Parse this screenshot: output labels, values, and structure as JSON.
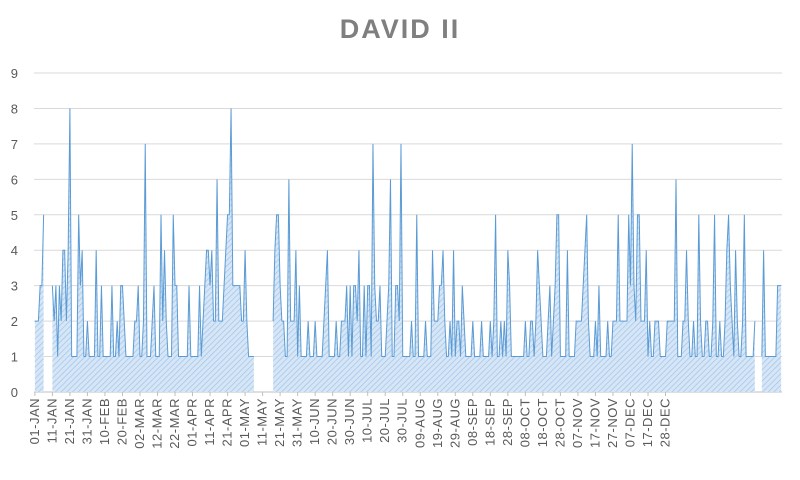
{
  "chart_data": {
    "type": "area",
    "title": "DAVID II",
    "xlabel": "",
    "ylabel": "",
    "ylim": [
      0,
      9
    ],
    "yticks": [
      0,
      1,
      2,
      3,
      4,
      5,
      6,
      7,
      8,
      9
    ],
    "grid": true,
    "x_start": "01-JAN",
    "x_tick_labels": [
      "01-JAN",
      "11-JAN",
      "21-JAN",
      "31-JAN",
      "10-FEB",
      "20-FEB",
      "02-MAR",
      "12-MAR",
      "22-MAR",
      "01-APR",
      "11-APR",
      "21-APR",
      "01-MAY",
      "11-MAY",
      "21-MAY",
      "31-MAY",
      "10-JUN",
      "20-JUN",
      "30-JUN",
      "10-JUL",
      "20-JUL",
      "30-JUL",
      "09-AUG",
      "19-AUG",
      "29-AUG",
      "08-SEP",
      "18-SEP",
      "28-SEP",
      "08-OCT",
      "18-OCT",
      "28-OCT",
      "07-NOV",
      "17-NOV",
      "27-NOV",
      "07-DEC",
      "17-DEC",
      "28-DEC"
    ],
    "series": [
      {
        "name": "",
        "color": "#5b9bd5",
        "values": [
          2,
          2,
          2,
          3,
          3,
          5,
          0,
          0,
          0,
          0,
          3,
          2,
          3,
          1,
          3,
          2,
          4,
          4,
          2,
          4,
          8,
          1,
          1,
          1,
          1,
          5,
          3,
          4,
          1,
          1,
          2,
          1,
          1,
          1,
          1,
          4,
          1,
          1,
          3,
          1,
          1,
          1,
          1,
          1,
          3,
          1,
          1,
          2,
          1,
          3,
          3,
          2,
          1,
          1,
          1,
          1,
          1,
          2,
          2,
          3,
          1,
          1,
          2,
          7,
          1,
          1,
          1,
          2,
          3,
          1,
          1,
          1,
          5,
          2,
          4,
          2,
          1,
          1,
          1,
          5,
          3,
          3,
          1,
          1,
          1,
          1,
          1,
          1,
          3,
          1,
          1,
          1,
          1,
          1,
          3,
          1,
          2,
          3,
          4,
          4,
          3,
          4,
          2,
          2,
          6,
          2,
          2,
          2,
          3,
          4,
          5,
          5,
          8,
          3,
          3,
          3,
          3,
          3,
          2,
          2,
          4,
          2,
          1,
          1,
          1,
          1,
          0,
          0,
          0,
          0,
          0,
          0,
          0,
          0,
          0,
          0,
          2,
          4,
          5,
          5,
          3,
          2,
          2,
          1,
          1,
          6,
          2,
          2,
          2,
          4,
          1,
          3,
          1,
          1,
          1,
          1,
          2,
          1,
          1,
          1,
          2,
          1,
          1,
          1,
          1,
          2,
          3,
          4,
          1,
          1,
          1,
          1,
          2,
          1,
          1,
          2,
          2,
          2,
          3,
          1,
          3,
          1,
          3,
          3,
          2,
          4,
          1,
          1,
          3,
          1,
          3,
          3,
          1,
          7,
          3,
          2,
          2,
          3,
          1,
          1,
          1,
          2,
          3,
          6,
          1,
          1,
          3,
          3,
          2,
          7,
          1,
          1,
          1,
          1,
          1,
          2,
          1,
          1,
          5,
          1,
          1,
          1,
          1,
          2,
          1,
          1,
          1,
          4,
          2,
          2,
          2,
          3,
          3,
          4,
          2,
          1,
          1,
          2,
          1,
          4,
          1,
          2,
          2,
          1,
          3,
          2,
          1,
          1,
          1,
          1,
          2,
          1,
          1,
          1,
          1,
          2,
          1,
          1,
          1,
          1,
          2,
          1,
          2,
          5,
          1,
          1,
          2,
          1,
          2,
          1,
          4,
          3,
          1,
          1,
          1,
          1,
          1,
          1,
          1,
          1,
          2,
          1,
          1,
          2,
          2,
          1,
          2,
          4,
          3,
          2,
          1,
          1,
          1,
          2,
          3,
          1,
          2,
          3,
          5,
          5,
          1,
          1,
          1,
          1,
          4,
          1,
          1,
          1,
          1,
          2,
          2,
          2,
          2,
          3,
          4,
          5,
          2,
          1,
          1,
          1,
          2,
          1,
          3,
          1,
          1,
          1,
          1,
          2,
          1,
          1,
          2,
          2,
          2,
          5,
          2,
          2,
          2,
          2,
          2,
          5,
          3,
          7,
          3,
          2,
          5,
          5,
          2,
          2,
          2,
          4,
          1,
          2,
          1,
          1,
          2,
          2,
          2,
          1,
          1,
          1,
          1,
          2,
          2,
          2,
          2,
          2,
          6,
          1,
          1,
          1,
          2,
          2,
          4,
          2,
          1,
          1,
          2,
          1,
          1,
          5,
          2,
          1,
          1,
          2,
          2,
          1,
          1,
          2,
          5,
          1,
          1,
          2,
          1,
          1,
          2,
          4,
          5,
          3,
          2,
          1,
          4,
          2,
          1,
          1,
          2,
          5,
          1,
          1,
          1,
          1,
          1,
          2,
          0,
          0,
          0,
          1,
          4,
          1,
          1,
          1,
          1,
          1,
          1,
          1,
          3,
          3,
          3
        ]
      }
    ]
  }
}
